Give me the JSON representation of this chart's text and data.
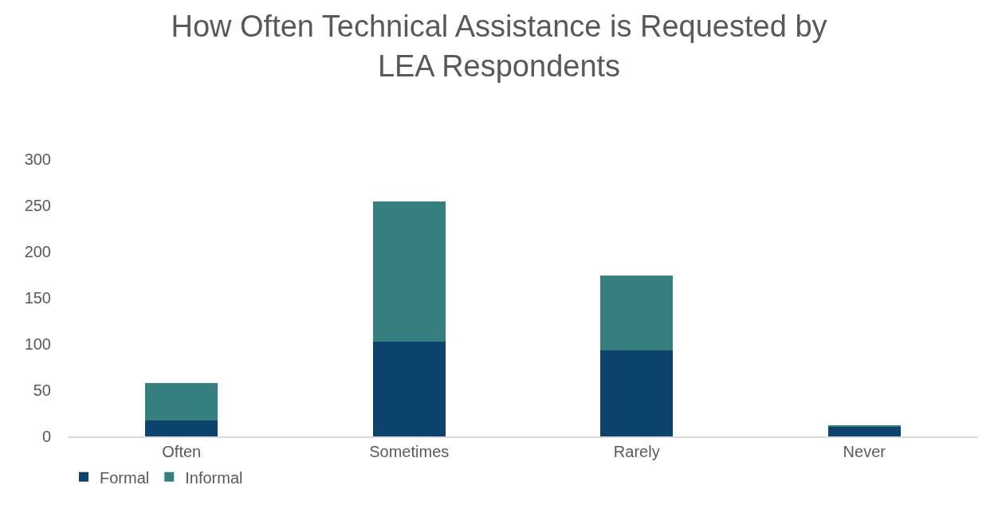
{
  "chart_data": {
    "type": "bar",
    "title": "How Often Technical Assistance is Requested by\nLEA Respondents",
    "categories": [
      "Often",
      "Sometimes",
      "Rarely",
      "Never"
    ],
    "stacked": true,
    "series": [
      {
        "name": "Formal",
        "color": "#0b436c",
        "values": [
          17,
          103,
          93,
          10
        ]
      },
      {
        "name": "Informal",
        "color": "#357f7f",
        "values": [
          41,
          151,
          81,
          2
        ]
      }
    ],
    "ylim": [
      0,
      300
    ],
    "yticks": [
      0,
      50,
      100,
      150,
      200,
      250,
      300
    ],
    "grid": false,
    "legend": "bottom left"
  }
}
